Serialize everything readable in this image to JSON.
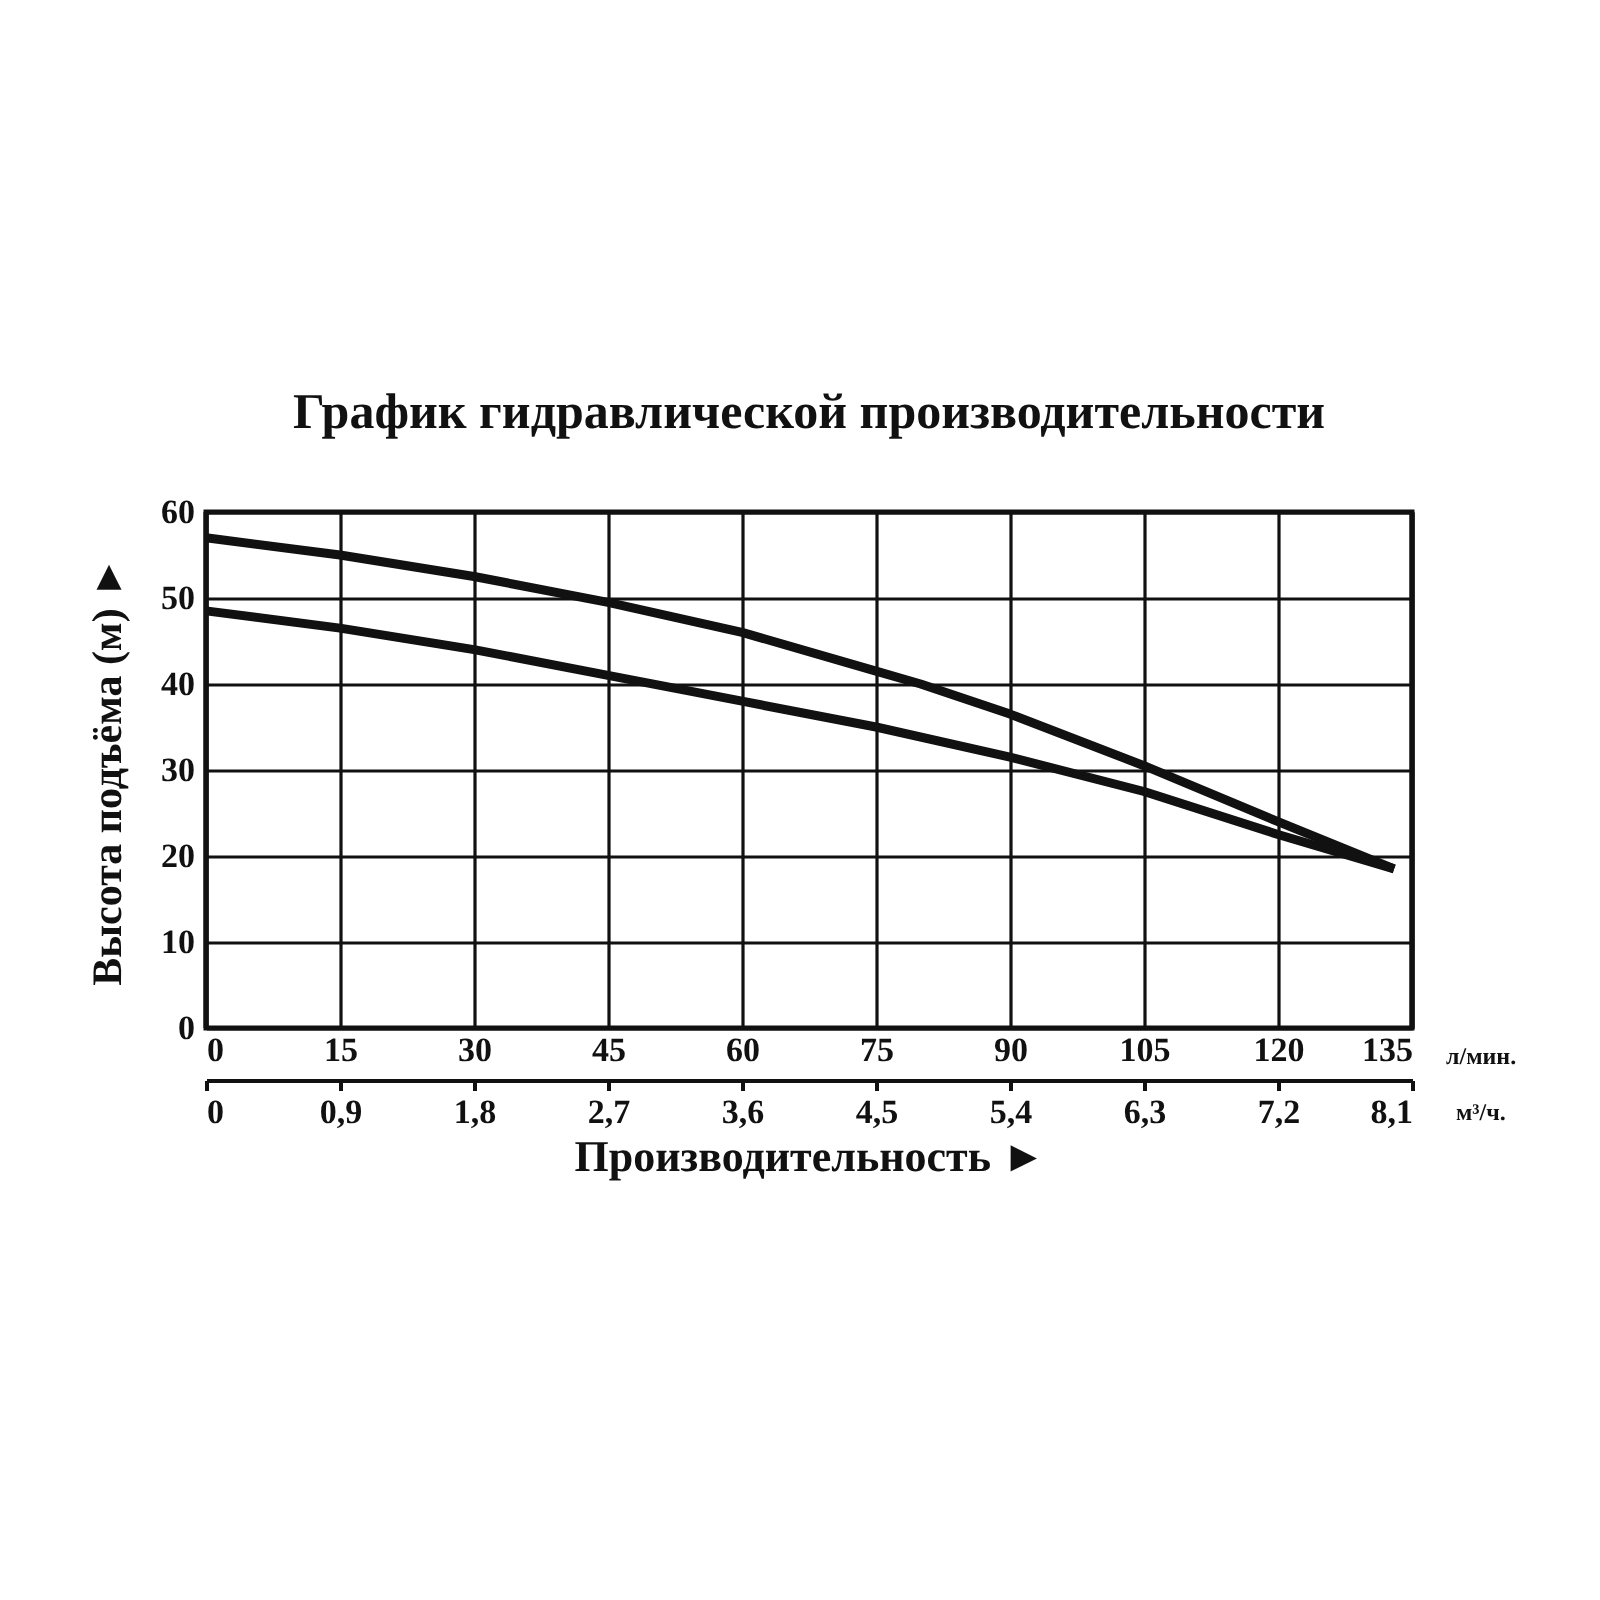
{
  "chart_data": {
    "type": "line",
    "title": "График гидравлической производительности",
    "xlabel": "Производительность ►",
    "ylabel": "Высота подъёма (м) ►",
    "xlim": [
      0,
      135
    ],
    "xticks": [
      0,
      15,
      30,
      45,
      60,
      75,
      90,
      105,
      120,
      135
    ],
    "x2lim": [
      0,
      8.1
    ],
    "x2ticks": [
      0,
      {
        "value": 0.9,
        "label": "0,9"
      },
      {
        "value": 1.8,
        "label": "1,8"
      },
      {
        "value": 2.7,
        "label": "2,7"
      },
      {
        "value": 3.6,
        "label": "3,6"
      },
      {
        "value": 4.5,
        "label": "4,5"
      },
      {
        "value": 5.4,
        "label": "5,4"
      },
      {
        "value": 6.3,
        "label": "6,3"
      },
      {
        "value": 7.2,
        "label": "7,2"
      },
      {
        "value": 8.1,
        "label": "8,1"
      }
    ],
    "ylim": [
      0,
      60
    ],
    "yticks": [
      0,
      10,
      20,
      30,
      40,
      50,
      60
    ],
    "grid": true,
    "line_style": "solid",
    "annotations": [
      "л/мин.",
      "м³/ч."
    ],
    "series": [
      {
        "color": "#111111",
        "x": [
          0,
          15,
          30,
          45,
          60,
          75,
          80,
          90,
          105,
          120,
          133
        ],
        "values": [
          57,
          55,
          52.5,
          49.5,
          46,
          41.5,
          40,
          36.5,
          30.5,
          24,
          18.5
        ]
      },
      {
        "color": "#111111",
        "x": [
          0,
          15,
          30,
          45,
          60,
          75,
          90,
          105,
          120,
          133
        ],
        "values": [
          48.5,
          46.5,
          44,
          41,
          38,
          35,
          31.5,
          27.5,
          22.5,
          18.5
        ]
      }
    ]
  }
}
